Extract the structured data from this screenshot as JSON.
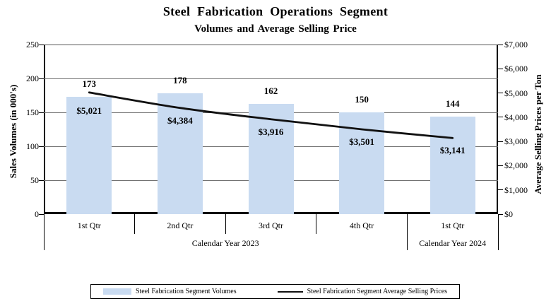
{
  "title": "Steel Fabrication Operations Segment",
  "subtitle": "Volumes and Average Selling Price",
  "chart_data": {
    "type": "bar",
    "combo": "bar+line dual axis",
    "categories": [
      "1st Qtr",
      "2nd Qtr",
      "3rd Qtr",
      "4th Qtr",
      "1st Qtr"
    ],
    "category_groups": [
      {
        "label": "Calendar Year 2023",
        "span": 4
      },
      {
        "label": "Calendar Year 2024",
        "span": 1
      }
    ],
    "series": [
      {
        "name": "Steel Fabrication Segment Volumes",
        "type": "bar",
        "axis": "left",
        "values": [
          173,
          178,
          162,
          150,
          144
        ],
        "labels": [
          "173",
          "178",
          "162",
          "150",
          "144"
        ]
      },
      {
        "name": "Steel Fabrication Segment Average Selling Prices",
        "type": "line",
        "axis": "right",
        "values": [
          5021,
          4384,
          3916,
          3501,
          3141
        ],
        "labels": [
          "$5,021",
          "$4,384",
          "$3,916",
          "$3,501",
          "$3,141"
        ]
      }
    ],
    "left_axis": {
      "title": "Sales Volumes (in 000's)",
      "min": 0,
      "max": 250,
      "step": 50,
      "ticks": [
        "0",
        "50",
        "100",
        "150",
        "200",
        "250"
      ]
    },
    "right_axis": {
      "title": "Average Selling Prices per Ton",
      "min": 0,
      "max": 7000,
      "step": 1000,
      "ticks": [
        "$0",
        "$1,000",
        "$2,000",
        "$3,000",
        "$4,000",
        "$5,000",
        "$6,000",
        "$7,000"
      ]
    },
    "grid": true,
    "legend_position": "bottom"
  },
  "legend": {
    "items": [
      {
        "label": "Steel Fabrication Segment Volumes",
        "swatch": "bar"
      },
      {
        "label": "Steel Fabrication Segment Average Selling Prices",
        "swatch": "line"
      }
    ]
  },
  "colors": {
    "bar_fill": "#c9dbf1",
    "line": "#111111",
    "gridline": "#707070",
    "axis": "#000000",
    "text": "#000000"
  }
}
